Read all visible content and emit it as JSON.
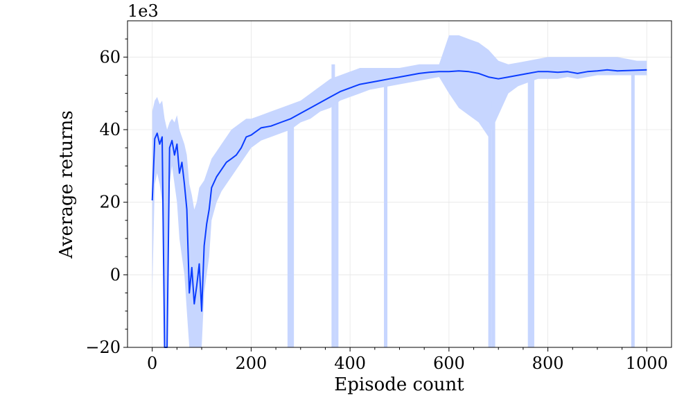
{
  "chart_data": {
    "type": "line",
    "title": "",
    "xlabel": "Episode count",
    "ylabel": "Average returns",
    "y_scale_label": "1e3",
    "xlim": [
      -50,
      1050
    ],
    "ylim": [
      -20,
      70
    ],
    "x_ticks": [
      0,
      200,
      400,
      600,
      800,
      1000
    ],
    "x_tick_labels": [
      "0",
      "200",
      "400",
      "600",
      "800",
      "1000"
    ],
    "y_ticks": [
      -20,
      0,
      20,
      40,
      60
    ],
    "y_tick_labels": [
      "−20",
      "0",
      "20",
      "40",
      "60"
    ],
    "grid": true,
    "legend": "none",
    "colors": {
      "mean_line": "#0a3cff",
      "band": "#c7d6ff"
    },
    "series": [
      {
        "x": [
          0,
          5,
          10,
          15,
          20,
          25,
          30,
          35,
          40,
          45,
          50,
          55,
          60,
          65,
          70,
          75,
          80,
          85,
          90,
          95,
          100,
          105,
          110,
          115,
          120,
          130,
          140,
          150,
          160,
          170,
          180,
          190,
          200,
          220,
          240,
          260,
          280,
          300,
          320,
          340,
          360,
          380,
          400,
          420,
          440,
          460,
          480,
          500,
          520,
          540,
          560,
          580,
          600,
          620,
          640,
          660,
          680,
          700,
          720,
          740,
          760,
          780,
          800,
          820,
          840,
          860,
          880,
          900,
          920,
          940,
          960,
          980,
          1000
        ],
        "mean": [
          20.5,
          37.5,
          39,
          36,
          38,
          -25,
          -25,
          35,
          37,
          33,
          36,
          28,
          31,
          25,
          18,
          -5,
          2,
          -8,
          -3,
          3,
          -10,
          8,
          14,
          18,
          24,
          27,
          29,
          31,
          32,
          33,
          35,
          38,
          38.5,
          40.5,
          41,
          42,
          43,
          44.5,
          46,
          47.5,
          49,
          50.5,
          51.5,
          52.5,
          53,
          53.5,
          54,
          54.5,
          55,
          55.5,
          55.8,
          56,
          56,
          56.2,
          56,
          55.5,
          54.5,
          54,
          54.5,
          55,
          55.5,
          56,
          56,
          55.8,
          56,
          55.5,
          56,
          56.2,
          56.5,
          56.2,
          56.3,
          56.4,
          56.5
        ],
        "lower": [
          -5,
          25,
          28,
          25,
          20,
          -25,
          -25,
          25,
          30,
          25,
          20,
          10,
          5,
          0,
          -10,
          -20,
          -20,
          -20,
          -20,
          -20,
          -20,
          -5,
          0,
          5,
          15,
          20,
          23,
          25,
          27,
          29,
          31,
          33,
          35,
          37,
          38,
          39,
          40,
          42,
          43,
          45,
          46,
          48,
          49,
          50,
          51,
          51.5,
          52,
          52.5,
          53,
          53.5,
          54,
          54.5,
          50,
          46,
          44,
          42,
          38,
          44,
          50,
          52,
          53,
          54,
          54,
          54,
          54.5,
          54,
          54.5,
          55,
          55,
          55,
          55,
          55,
          55
        ],
        "upper": [
          45,
          48,
          49,
          47,
          48,
          43,
          40,
          42,
          43,
          42,
          44,
          40,
          38,
          36,
          33,
          25,
          22,
          18,
          20,
          24,
          25,
          26,
          28,
          30,
          32,
          34,
          36,
          38,
          40,
          41,
          42,
          43,
          43,
          44,
          45,
          46,
          47,
          48,
          50,
          52,
          54,
          55,
          56,
          57,
          57,
          57,
          57,
          57,
          57.5,
          58,
          58,
          58,
          66,
          66,
          65,
          64,
          62,
          59,
          58,
          58.5,
          59,
          59.5,
          60,
          60,
          60,
          60,
          60,
          60,
          60,
          60,
          59.5,
          59,
          59
        ]
      }
    ],
    "dropouts": [
      {
        "x": 277,
        "lower": -20,
        "upper": 42
      },
      {
        "x": 283,
        "lower": -20,
        "upper": 42
      },
      {
        "x": 366,
        "lower": -20,
        "upper": 58
      },
      {
        "x": 373,
        "lower": -20,
        "upper": 52
      },
      {
        "x": 472,
        "lower": -20,
        "upper": 54
      },
      {
        "x": 683,
        "lower": -20,
        "upper": 48
      },
      {
        "x": 690,
        "lower": -20,
        "upper": 46
      },
      {
        "x": 763,
        "lower": -20,
        "upper": 55
      },
      {
        "x": 769,
        "lower": -20,
        "upper": 54
      },
      {
        "x": 972,
        "lower": -20,
        "upper": 57
      }
    ]
  }
}
